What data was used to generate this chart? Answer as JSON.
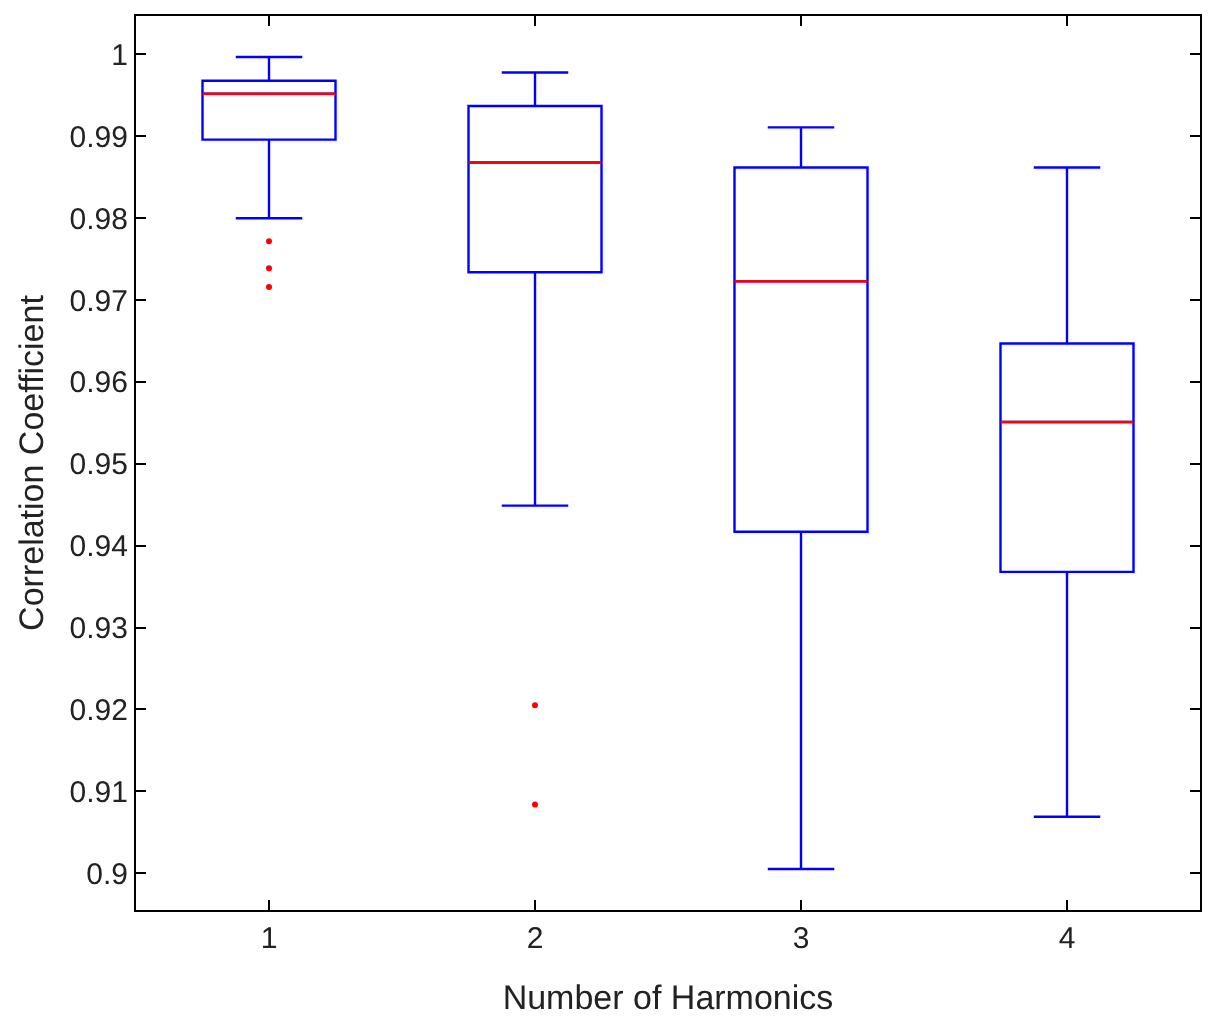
{
  "chart_data": {
    "type": "box",
    "xlabel": "Number of Harmonics",
    "ylabel": "Correlation Coefficient",
    "categories": [
      "1",
      "2",
      "3",
      "4"
    ],
    "series": [
      {
        "color": "#0000ff",
        "boxes": [
          {
            "low": 0.98,
            "q1": 0.9896,
            "median": 0.9952,
            "q3": 0.9968,
            "high": 0.9997,
            "outliers": [
              0.9772,
              0.9739,
              0.9716
            ]
          },
          {
            "low": 0.9449,
            "q1": 0.9734,
            "median": 0.9868,
            "q3": 0.9937,
            "high": 0.9978,
            "outliers": [
              0.9205,
              0.9084
            ]
          },
          {
            "low": 0.9005,
            "q1": 0.9417,
            "median": 0.9723,
            "q3": 0.9862,
            "high": 0.9911
          },
          {
            "low": 0.9069,
            "q1": 0.9368,
            "median": 0.9551,
            "q3": 0.9647,
            "high": 0.9862
          }
        ]
      }
    ],
    "ylim": [
      0.8955,
      1.0047
    ],
    "yticks": [
      {
        "value": 0.9,
        "label": "0.9"
      },
      0.91,
      0.92,
      0.93,
      0.94,
      0.95,
      0.96,
      0.97,
      0.98,
      0.99,
      {
        "value": 1,
        "label": "1"
      }
    ]
  }
}
